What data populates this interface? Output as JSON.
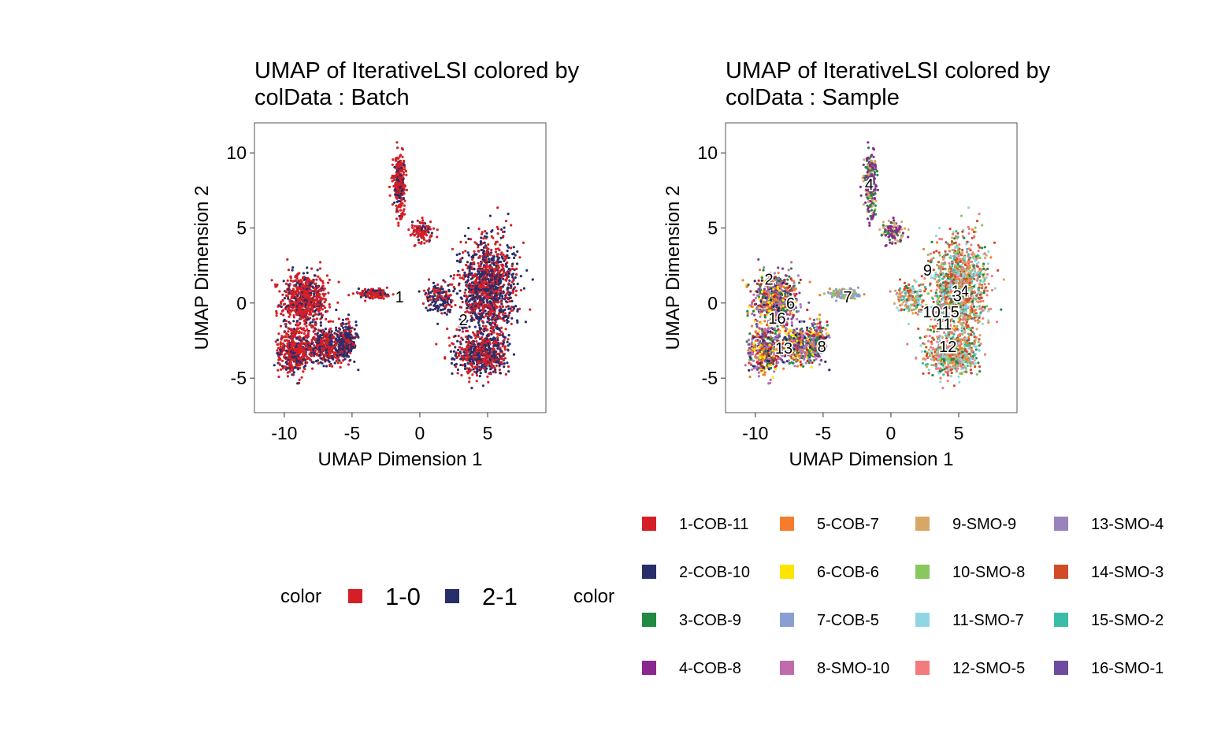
{
  "chart_data": [
    {
      "type": "scatter",
      "title_lines": [
        "UMAP of IterativeLSI  colored by",
        "colData :  Batch"
      ],
      "xlabel": "UMAP Dimension 1",
      "ylabel": "UMAP Dimension 2",
      "xlim": [
        -12.2,
        9.3
      ],
      "ylim": [
        -7.3,
        12.0
      ],
      "xticks": [
        -10,
        -5,
        0,
        5
      ],
      "yticks": [
        -5,
        0,
        5,
        10
      ],
      "xtick_labels": [
        "-10",
        "-5",
        "0",
        "5"
      ],
      "ytick_labels": [
        "-5",
        "0",
        "5",
        "10"
      ],
      "legend_title": "color",
      "legend_position": "bottom",
      "series": [
        {
          "name": "1-0",
          "color": "#D51F26"
        },
        {
          "name": "2-1",
          "color": "#272E6A"
        }
      ],
      "cluster_labels": [
        {
          "text": "1",
          "x": -1.5,
          "y": 0.4
        },
        {
          "text": "2",
          "x": 3.2,
          "y": -1.1
        }
      ]
    },
    {
      "type": "scatter",
      "title_lines": [
        "UMAP of IterativeLSI  colored by",
        "colData :  Sample"
      ],
      "xlabel": "UMAP Dimension 1",
      "ylabel": "UMAP Dimension 2",
      "xlim": [
        -12.2,
        9.3
      ],
      "ylim": [
        -7.3,
        12.0
      ],
      "xticks": [
        -10,
        -5,
        0,
        5
      ],
      "yticks": [
        -5,
        0,
        5,
        10
      ],
      "xtick_labels": [
        "-10",
        "-5",
        "0",
        "5"
      ],
      "ytick_labels": [
        "-5",
        "0",
        "5",
        "10"
      ],
      "legend_title": "color",
      "legend_position": "bottom",
      "series": [
        {
          "name": "1-COB-11",
          "color": "#D51F26"
        },
        {
          "name": "2-COB-10",
          "color": "#272E6A"
        },
        {
          "name": "3-COB-9",
          "color": "#208A42"
        },
        {
          "name": "4-COB-8",
          "color": "#89288F"
        },
        {
          "name": "5-COB-7",
          "color": "#F47D2B"
        },
        {
          "name": "6-COB-6",
          "color": "#FEE500"
        },
        {
          "name": "7-COB-5",
          "color": "#8A9FD1"
        },
        {
          "name": "8-SMO-10",
          "color": "#C06CAB"
        },
        {
          "name": "9-SMO-9",
          "color": "#D8A767"
        },
        {
          "name": "10-SMO-8",
          "color": "#89C75F"
        },
        {
          "name": "11-SMO-7",
          "color": "#90D5E4"
        },
        {
          "name": "12-SMO-5",
          "color": "#F37B7D"
        },
        {
          "name": "13-SMO-4",
          "color": "#9983BD"
        },
        {
          "name": "14-SMO-3",
          "color": "#D24B27"
        },
        {
          "name": "15-SMO-2",
          "color": "#3BBCA8"
        },
        {
          "name": "16-SMO-1",
          "color": "#6E4B9E"
        }
      ],
      "cluster_labels": [
        {
          "text": "4",
          "x": -1.6,
          "y": 7.9
        },
        {
          "text": "9",
          "x": 2.7,
          "y": 2.2
        },
        {
          "text": "2",
          "x": -9.0,
          "y": 1.6
        },
        {
          "text": "14",
          "x": 5.1,
          "y": 0.8
        },
        {
          "text": "3",
          "x": 4.9,
          "y": 0.5
        },
        {
          "text": "6",
          "x": -7.4,
          "y": 0.0
        },
        {
          "text": "7",
          "x": -3.2,
          "y": 0.4
        },
        {
          "text": "10",
          "x": 3.0,
          "y": -0.6
        },
        {
          "text": "15",
          "x": 4.4,
          "y": -0.6
        },
        {
          "text": "16",
          "x": -8.4,
          "y": -1.0
        },
        {
          "text": "11",
          "x": 3.9,
          "y": -1.4
        },
        {
          "text": "13",
          "x": -7.9,
          "y": -3.0
        },
        {
          "text": "8",
          "x": -5.1,
          "y": -2.9
        },
        {
          "text": "12",
          "x": 4.2,
          "y": -2.9
        }
      ]
    }
  ]
}
